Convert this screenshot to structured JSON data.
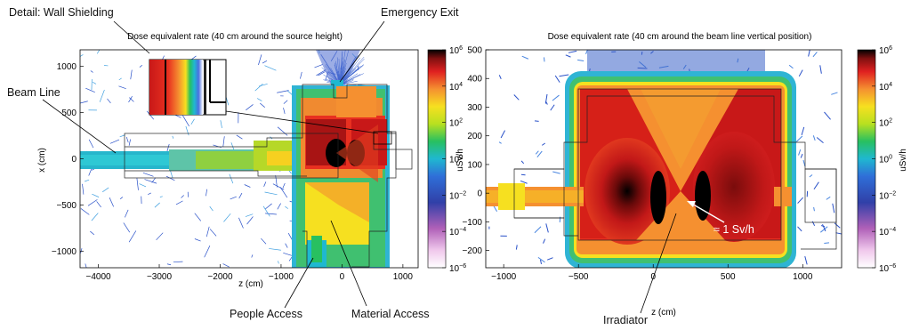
{
  "annotations": {
    "wall_shielding": "Detail: Wall Shielding",
    "emergency_exit": "Emergency Exit",
    "beam_line": "Beam Line",
    "people_access": "People Access",
    "material_access": "Material Access",
    "irradiator": "Irradiator",
    "dose_point": "≈ 1 Sv/h"
  },
  "chart_data": [
    {
      "type": "heatmap",
      "title": "Dose equivalent rate (40 cm around the source height)",
      "xlabel": "z (cm)",
      "ylabel": "x (cm)",
      "xlim": [
        -4300,
        1250
      ],
      "ylim": [
        -1180,
        1180
      ],
      "xticks": [
        -4000,
        -3000,
        -2000,
        -1000,
        0,
        1000
      ],
      "yticks": [
        1000,
        500,
        0,
        -500,
        -1000
      ],
      "colorbar": {
        "label": "uSv/h",
        "scale": "log",
        "range": [
          1e-06,
          1000000.0
        ],
        "ticks": [
          "10^6",
          "10^4",
          "10^2",
          "10^0",
          "10^-2",
          "10^-4",
          "10^-6"
        ]
      }
    },
    {
      "type": "heatmap",
      "title": "Dose equivalent rate (40 cm around the beam line vertical position)",
      "xlabel": "z (cm)",
      "ylabel": "",
      "xlim": [
        -1120,
        1260
      ],
      "ylim": [
        -260,
        500
      ],
      "xticks": [
        -1000,
        -500,
        0,
        500,
        1000
      ],
      "yticks": [
        500,
        400,
        300,
        200,
        100,
        0,
        -100,
        -200
      ],
      "colorbar": {
        "label": "uSv/h",
        "scale": "log",
        "range": [
          1e-06,
          1000000.0
        ],
        "ticks": [
          "10^6",
          "10^4",
          "10^2",
          "10^0",
          "10^-2",
          "10^-4",
          "10^-6"
        ]
      }
    }
  ]
}
